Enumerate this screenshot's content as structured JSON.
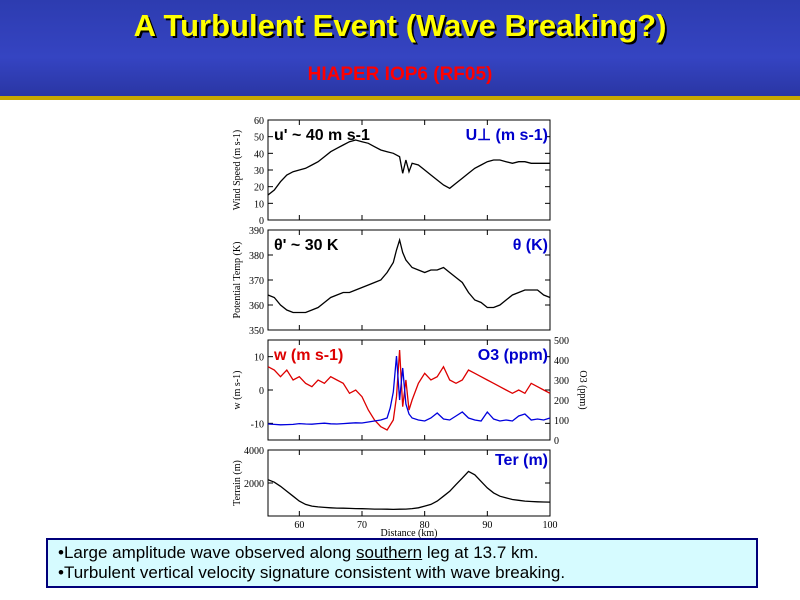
{
  "slide": {
    "title": "A Turbulent Event (Wave Breaking?)",
    "subtitle": "HIAPER IOP6 (RF05)",
    "bullets": [
      {
        "prefix": "•Large amplitude wave observed along ",
        "underlined": "southern",
        "suffix": " leg at 13.7 km."
      },
      {
        "text": "•Turbulent vertical velocity signature consistent with wave breaking."
      }
    ]
  },
  "colors": {
    "title": "#ffff00",
    "subtitle": "#ff0000",
    "header_bg": "#3443bf",
    "rule": "#c8a800",
    "u_label": "#0000cc",
    "w_series": "#dd0000",
    "o3_series": "#0000dd",
    "note_bg": "#d6fbff"
  },
  "chart_data": [
    {
      "type": "line",
      "ylabel": "Wind Speed (m s-1)",
      "ylim": [
        0,
        60
      ],
      "yticks": [
        "0",
        "10",
        "20",
        "30",
        "40",
        "50",
        "60"
      ],
      "annotation_left": "u' ~ 40 m s-1",
      "annotation_right": "U⊥ (m s-1)",
      "series": [
        {
          "name": "Wind Speed",
          "x": [
            55,
            56,
            57,
            58,
            59,
            60,
            61,
            62,
            63,
            64,
            65,
            66,
            67,
            68,
            69,
            70,
            71,
            72,
            73,
            74,
            75,
            76,
            76.5,
            77,
            77.5,
            78,
            79,
            80,
            81,
            82,
            83,
            84,
            85,
            86,
            87,
            88,
            89,
            90,
            91,
            92,
            93,
            94,
            95,
            96,
            97,
            98,
            99,
            100
          ],
          "y": [
            15,
            18,
            23,
            27,
            29,
            30,
            31,
            33,
            35,
            38,
            41,
            43,
            45,
            47,
            48,
            47,
            46,
            44,
            42,
            41,
            40,
            38,
            28,
            36,
            29,
            34,
            33,
            30,
            27,
            24,
            21,
            19,
            22,
            25,
            28,
            31,
            33,
            35,
            36,
            36,
            35,
            34,
            35,
            35,
            34,
            34,
            34,
            34
          ]
        }
      ]
    },
    {
      "type": "line",
      "ylabel": "Potential Temp (K)",
      "ylim": [
        350,
        390
      ],
      "yticks": [
        "350",
        "360",
        "370",
        "380",
        "390"
      ],
      "annotation_left": "θ' ~ 30 K",
      "annotation_right": "θ (K)",
      "series": [
        {
          "name": "Potential Temperature",
          "x": [
            55,
            56,
            57,
            58,
            59,
            60,
            61,
            62,
            63,
            64,
            65,
            66,
            67,
            68,
            69,
            70,
            71,
            72,
            73,
            74,
            75,
            75.5,
            76,
            76.5,
            77,
            78,
            79,
            80,
            81,
            82,
            83,
            84,
            85,
            86,
            87,
            88,
            89,
            90,
            91,
            92,
            93,
            94,
            95,
            96,
            97,
            98,
            99,
            100
          ],
          "y": [
            364,
            363,
            360,
            358,
            357,
            357,
            357,
            358,
            359,
            361,
            363,
            364,
            365,
            365,
            366,
            367,
            368,
            369,
            370,
            373,
            377,
            382,
            386,
            381,
            378,
            375,
            374,
            373,
            374,
            374,
            375,
            373,
            371,
            369,
            365,
            362,
            361,
            359,
            359,
            360,
            362,
            364,
            365,
            366,
            366,
            366,
            364,
            363
          ]
        }
      ]
    },
    {
      "type": "line",
      "ylabel": "w (m s-1)",
      "ylabel_right": "O3 (ppm)",
      "ylim": [
        -15,
        15
      ],
      "ylim_right": [
        0,
        500
      ],
      "yticks": [
        "-10",
        "0",
        "10"
      ],
      "yticks_right": [
        "0",
        "100",
        "200",
        "300",
        "400",
        "500"
      ],
      "annotation_left": "w (m s-1)",
      "annotation_right": "O3 (ppm)",
      "series": [
        {
          "name": "w (m s-1)",
          "axis": "left",
          "x": [
            55,
            56,
            57,
            58,
            59,
            60,
            61,
            62,
            63,
            64,
            65,
            66,
            67,
            68,
            69,
            70,
            71,
            72,
            73,
            74,
            75,
            75.5,
            76,
            76.5,
            77,
            77.5,
            78,
            79,
            80,
            81,
            82,
            83,
            84,
            85,
            86,
            87,
            88,
            89,
            90,
            91,
            92,
            93,
            94,
            95,
            96,
            97,
            98,
            99,
            100
          ],
          "y": [
            7,
            6,
            4,
            6,
            3,
            4,
            2,
            1,
            3,
            2,
            4,
            3,
            2,
            -1,
            0,
            -2,
            -6,
            -9,
            -11,
            -12,
            -9,
            -2,
            12,
            -5,
            3,
            -6,
            -3,
            2,
            5,
            3,
            4,
            7,
            3,
            2,
            3,
            6,
            5,
            4,
            3,
            2,
            1,
            0,
            -1,
            0,
            -1,
            2,
            1,
            0,
            -1
          ]
        },
        {
          "name": "O3 (ppm)",
          "axis": "right",
          "x": [
            55,
            56,
            57,
            58,
            59,
            60,
            61,
            62,
            63,
            64,
            65,
            66,
            67,
            68,
            69,
            70,
            71,
            72,
            73,
            74,
            74.5,
            75,
            75.5,
            76,
            76.5,
            77,
            77.5,
            78,
            79,
            80,
            81,
            82,
            83,
            84,
            85,
            86,
            87,
            88,
            89,
            90,
            91,
            92,
            93,
            94,
            95,
            96,
            97,
            98,
            99,
            100
          ],
          "y": [
            80,
            78,
            76,
            77,
            78,
            82,
            80,
            79,
            82,
            84,
            81,
            80,
            82,
            84,
            86,
            85,
            90,
            95,
            100,
            110,
            160,
            240,
            420,
            200,
            360,
            180,
            130,
            110,
            100,
            95,
            110,
            135,
            105,
            100,
            120,
            140,
            110,
            100,
            95,
            140,
            105,
            95,
            100,
            95,
            120,
            130,
            100,
            105,
            100,
            110
          ]
        }
      ]
    },
    {
      "type": "area",
      "ylabel": "Terrain (m)",
      "xlabel": "Distance (km)",
      "ylim": [
        0,
        4000
      ],
      "yticks": [
        "2000",
        "4000"
      ],
      "xlim": [
        55,
        100
      ],
      "xticks": [
        "60",
        "70",
        "80",
        "90",
        "100"
      ],
      "annotation_right": "Ter (m)",
      "series": [
        {
          "name": "Terrain",
          "x": [
            55,
            56,
            57,
            58,
            59,
            60,
            61,
            62,
            63,
            64,
            65,
            66,
            67,
            68,
            69,
            70,
            71,
            72,
            73,
            74,
            75,
            76,
            77,
            78,
            79,
            80,
            81,
            82,
            83,
            84,
            85,
            86,
            87,
            88,
            89,
            90,
            91,
            92,
            93,
            94,
            95,
            96,
            97,
            98,
            99,
            100
          ],
          "y": [
            2200,
            2050,
            1800,
            1500,
            1200,
            900,
            700,
            600,
            550,
            520,
            500,
            480,
            470,
            460,
            450,
            440,
            430,
            420,
            420,
            410,
            400,
            410,
            420,
            450,
            500,
            600,
            700,
            900,
            1200,
            1500,
            1900,
            2300,
            2700,
            2500,
            2100,
            1700,
            1400,
            1200,
            1100,
            1000,
            950,
            900,
            880,
            860,
            850,
            840
          ]
        }
      ]
    }
  ]
}
